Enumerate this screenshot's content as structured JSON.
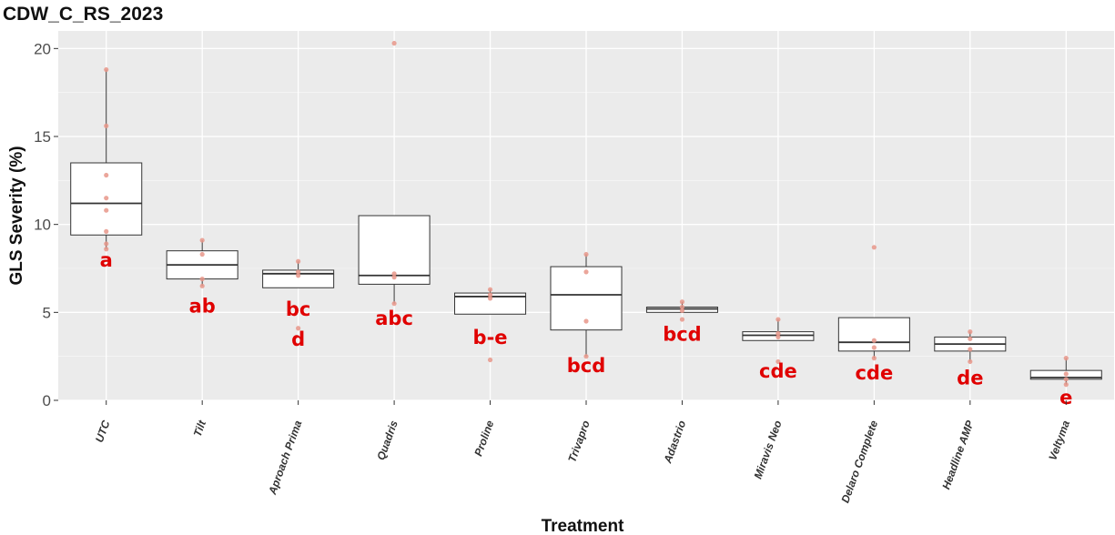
{
  "chart_data": {
    "type": "box",
    "title": "CDW_C_RS_2023",
    "xlabel": "Treatment",
    "ylabel": "GLS Severity (%)",
    "ylim": [
      0,
      21
    ],
    "yticks": [
      0,
      5,
      10,
      15,
      20
    ],
    "grid": true,
    "colors": {
      "panel": "#ebebeb",
      "grid_major": "#ffffff",
      "box_line": "#333333",
      "points": "#e8968a",
      "letters": "#e00000"
    },
    "categories": [
      "UTC",
      "Tilt",
      "Aproach Prima",
      "Quadris",
      "Proline",
      "Trivapro",
      "Adastrio",
      "Miravis Neo",
      "Delaro Complete",
      "Headline AMP",
      "Veltyma"
    ],
    "boxes": [
      {
        "category": "UTC",
        "whisker_low": 8.6,
        "q1": 9.4,
        "median": 11.2,
        "q3": 13.5,
        "whisker_high": 18.8,
        "points": [
          18.8,
          15.6,
          12.8,
          11.5,
          10.8,
          9.6,
          8.9,
          8.6
        ],
        "letter": "a",
        "letter_y": 7.6
      },
      {
        "category": "Tilt",
        "whisker_low": 6.5,
        "q1": 6.9,
        "median": 7.7,
        "q3": 8.5,
        "whisker_high": 9.1,
        "points": [
          9.1,
          8.3,
          6.9,
          6.5
        ],
        "letter": "ab",
        "letter_y": 5.0
      },
      {
        "category": "Aproach Prima",
        "whisker_low": 6.4,
        "q1": 6.4,
        "median": 7.2,
        "q3": 7.4,
        "whisker_high": 7.9,
        "points": [
          7.9,
          7.3,
          7.1,
          4.1
        ],
        "letter": "bc\nd",
        "letter_y": 4.8
      },
      {
        "category": "Quadris",
        "whisker_low": 5.5,
        "q1": 6.6,
        "median": 7.1,
        "q3": 10.5,
        "whisker_high": 10.5,
        "points": [
          20.3,
          7.2,
          7.0,
          5.5
        ],
        "letter": "abc",
        "letter_y": 4.3
      },
      {
        "category": "Proline",
        "whisker_low": 4.9,
        "q1": 4.9,
        "median": 5.9,
        "q3": 6.1,
        "whisker_high": 6.3,
        "points": [
          6.3,
          6.0,
          5.8,
          2.3
        ],
        "letter": "b-e",
        "letter_y": 3.2
      },
      {
        "category": "Trivapro",
        "whisker_low": 2.5,
        "q1": 4.0,
        "median": 6.0,
        "q3": 7.6,
        "whisker_high": 8.3,
        "points": [
          8.3,
          7.3,
          4.5,
          2.5
        ],
        "letter": "bcd",
        "letter_y": 1.6
      },
      {
        "category": "Adastrio",
        "whisker_low": 5.0,
        "q1": 5.0,
        "median": 5.2,
        "q3": 5.3,
        "whisker_high": 5.6,
        "points": [
          5.6,
          5.3,
          5.1,
          4.6
        ],
        "letter": "bcd",
        "letter_y": 3.4
      },
      {
        "category": "Miravis Neo",
        "whisker_low": 3.4,
        "q1": 3.4,
        "median": 3.7,
        "q3": 3.9,
        "whisker_high": 4.6,
        "points": [
          4.6,
          3.8,
          3.6,
          2.2
        ],
        "letter": "cde",
        "letter_y": 1.3
      },
      {
        "category": "Delaro Complete",
        "whisker_low": 2.4,
        "q1": 2.8,
        "median": 3.3,
        "q3": 4.7,
        "whisker_high": 4.7,
        "points": [
          8.7,
          3.4,
          3.0,
          2.4
        ],
        "letter": "cde",
        "letter_y": 1.2
      },
      {
        "category": "Headline AMP",
        "whisker_low": 2.2,
        "q1": 2.8,
        "median": 3.2,
        "q3": 3.6,
        "whisker_high": 3.9,
        "points": [
          3.9,
          3.5,
          2.9,
          2.2
        ],
        "letter": "de",
        "letter_y": 0.9
      },
      {
        "category": "Veltyma",
        "whisker_low": 0.9,
        "q1": 1.2,
        "median": 1.3,
        "q3": 1.7,
        "whisker_high": 2.4,
        "points": [
          2.4,
          1.5,
          1.2,
          0.9
        ],
        "letter": "e",
        "letter_y": -0.2
      }
    ]
  }
}
